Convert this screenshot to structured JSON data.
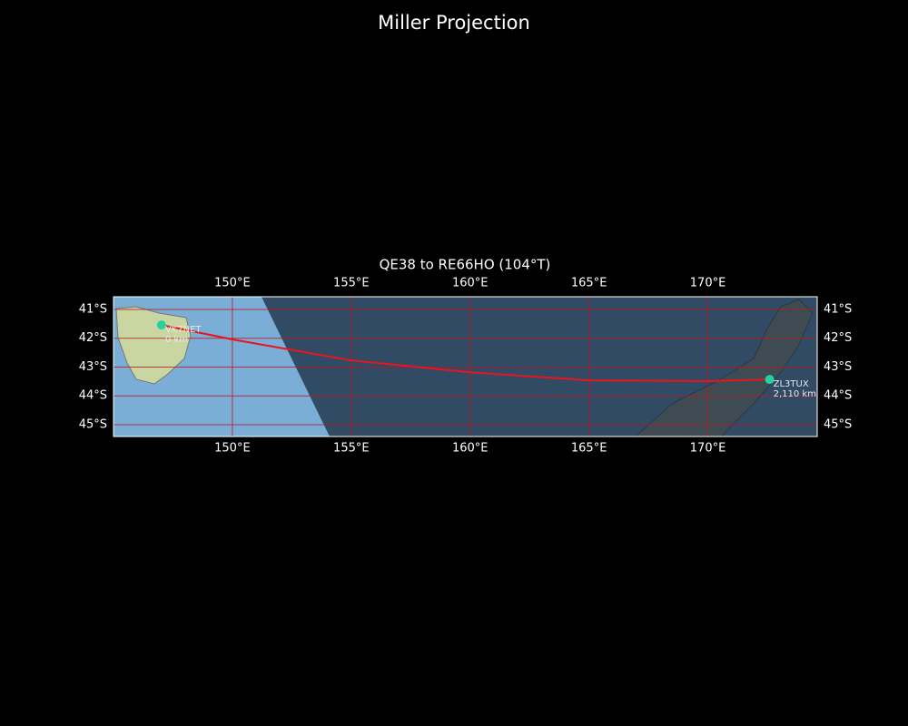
{
  "chart_data": {
    "type": "map",
    "title": "Miller Projection",
    "subtitle": "QE38 to RE66HO (104°T)",
    "xlim": [
      145.0,
      174.6
    ],
    "ylim": [
      -45.41,
      -40.56
    ],
    "xticks": [
      {
        "value": 150,
        "label": "150°E"
      },
      {
        "value": 155,
        "label": "155°E"
      },
      {
        "value": 160,
        "label": "160°E"
      },
      {
        "value": 165,
        "label": "165°E"
      },
      {
        "value": 170,
        "label": "170°E"
      }
    ],
    "yticks": [
      {
        "value": -41,
        "label": "41°S"
      },
      {
        "value": -42,
        "label": "42°S"
      },
      {
        "value": -43,
        "label": "43°S"
      },
      {
        "value": -44,
        "label": "44°S"
      },
      {
        "value": -45,
        "label": "45°S"
      }
    ],
    "grid": true,
    "path_color": "#e8141e",
    "marker_color": "#22d3a0",
    "path": {
      "lon": [
        147.02,
        150,
        155,
        160,
        165,
        170,
        172.6
      ],
      "lat": [
        -41.54,
        -42.04,
        -42.77,
        -43.18,
        -43.46,
        -43.49,
        -43.43
      ]
    },
    "stations": [
      {
        "name": "VK7NET",
        "lon": 147.02,
        "lat": -41.54,
        "distance": 0,
        "distance_label": "0 km"
      },
      {
        "name": "ZL3TUX",
        "lon": 172.6,
        "lat": -43.43,
        "distance": 2110,
        "distance_label": "2,110 km"
      }
    ]
  }
}
